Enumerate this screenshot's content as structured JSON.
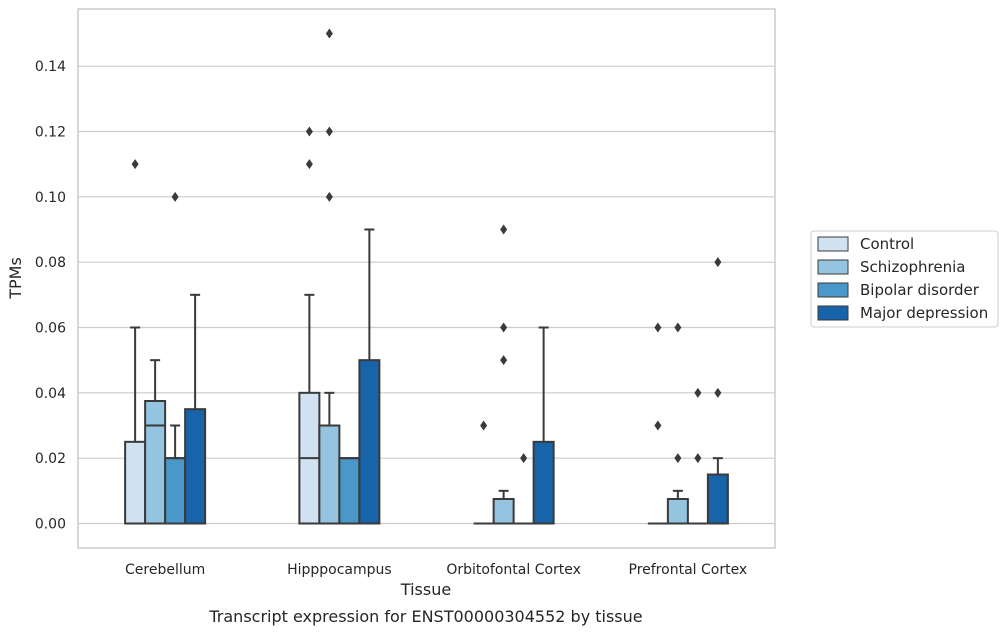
{
  "chart_data": {
    "type": "boxplot",
    "caption": "Transcript expression for ENST00000304552 by tissue",
    "xlabel": "Tissue",
    "ylabel": "TPMs",
    "ylim": [
      -0.0075,
      0.1575
    ],
    "yticks": [
      0.0,
      0.02,
      0.04,
      0.06,
      0.08,
      0.1,
      0.12,
      0.14
    ],
    "ytick_labels": [
      "0.00",
      "0.02",
      "0.04",
      "0.06",
      "0.08",
      "0.10",
      "0.12",
      "0.14"
    ],
    "grid": true,
    "legend_position": "right-center",
    "categories": [
      "Cerebellum",
      "Hipppocampus",
      "Orbitofontal Cortex",
      "Prefrontal Cortex"
    ],
    "series": [
      {
        "name": "Control",
        "color": "#d0e1f2",
        "boxes": [
          {
            "whislo": 0.0,
            "q1": 0.0,
            "med": 0.0,
            "q3": 0.025,
            "whishi": 0.06,
            "fliers": [
              0.11
            ]
          },
          {
            "whislo": 0.0,
            "q1": 0.0,
            "med": 0.02,
            "q3": 0.04,
            "whishi": 0.07,
            "fliers": [
              0.11,
              0.12
            ]
          },
          {
            "whislo": 0.0,
            "q1": 0.0,
            "med": 0.0,
            "q3": 0.0,
            "whishi": 0.0,
            "fliers": [
              0.03
            ]
          },
          {
            "whislo": 0.0,
            "q1": 0.0,
            "med": 0.0,
            "q3": 0.0,
            "whishi": 0.0,
            "fliers": [
              0.03,
              0.06
            ]
          }
        ]
      },
      {
        "name": "Schizophrenia",
        "color": "#94c4df",
        "boxes": [
          {
            "whislo": 0.0,
            "q1": 0.0,
            "med": 0.03,
            "q3": 0.0375,
            "whishi": 0.05,
            "fliers": []
          },
          {
            "whislo": 0.0,
            "q1": 0.0,
            "med": 0.03,
            "q3": 0.03,
            "whishi": 0.04,
            "fliers": [
              0.1,
              0.12,
              0.15
            ]
          },
          {
            "whislo": 0.0,
            "q1": 0.0,
            "med": 0.0,
            "q3": 0.0075,
            "whishi": 0.01,
            "fliers": [
              0.05,
              0.06,
              0.09
            ]
          },
          {
            "whislo": 0.0,
            "q1": 0.0,
            "med": 0.0,
            "q3": 0.0075,
            "whishi": 0.01,
            "fliers": [
              0.02,
              0.06
            ]
          }
        ]
      },
      {
        "name": "Bipolar disorder",
        "color": "#4a98c9",
        "boxes": [
          {
            "whislo": 0.0,
            "q1": 0.0,
            "med": 0.02,
            "q3": 0.02,
            "whishi": 0.03,
            "fliers": [
              0.1
            ]
          },
          {
            "whislo": 0.0,
            "q1": 0.0,
            "med": 0.02,
            "q3": 0.02,
            "whishi": 0.02,
            "fliers": []
          },
          {
            "whislo": 0.0,
            "q1": 0.0,
            "med": 0.0,
            "q3": 0.0,
            "whishi": 0.0,
            "fliers": [
              0.02
            ]
          },
          {
            "whislo": 0.0,
            "q1": 0.0,
            "med": 0.0,
            "q3": 0.0,
            "whishi": 0.0,
            "fliers": [
              0.02,
              0.04
            ]
          }
        ]
      },
      {
        "name": "Major depression",
        "color": "#1764ab",
        "boxes": [
          {
            "whislo": 0.0,
            "q1": 0.0,
            "med": 0.0,
            "q3": 0.035,
            "whishi": 0.07,
            "fliers": []
          },
          {
            "whislo": 0.0,
            "q1": 0.0,
            "med": 0.0,
            "q3": 0.05,
            "whishi": 0.09,
            "fliers": []
          },
          {
            "whislo": 0.0,
            "q1": 0.0,
            "med": 0.0,
            "q3": 0.025,
            "whishi": 0.06,
            "fliers": []
          },
          {
            "whislo": 0.0,
            "q1": 0.0,
            "med": 0.0,
            "q3": 0.015,
            "whishi": 0.02,
            "fliers": [
              0.04,
              0.08
            ]
          }
        ]
      }
    ]
  },
  "colors": {
    "box_edge": "#3a3a3a",
    "grid": "#cccccc",
    "frame": "#cccccc",
    "text": "#262626"
  }
}
